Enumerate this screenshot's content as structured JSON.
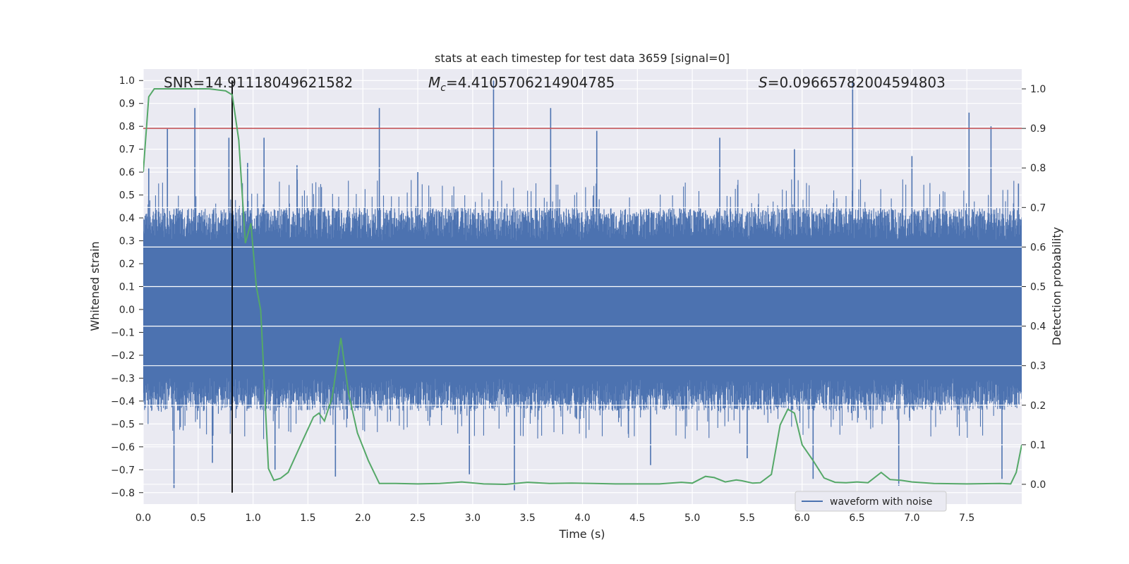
{
  "chart_data": {
    "type": "line",
    "title": "stats at each timestep for test data 3659 [signal=0]",
    "xlabel": "Time (s)",
    "ylabel_left": "Whitened strain",
    "ylabel_right": "Detection probability",
    "xlim": [
      0,
      8
    ],
    "ylim_left": [
      -0.85,
      1.05
    ],
    "ylim_right": [
      -0.05,
      1.05
    ],
    "x_ticks": [
      0.0,
      0.5,
      1.0,
      1.5,
      2.0,
      2.5,
      3.0,
      3.5,
      4.0,
      4.5,
      5.0,
      5.5,
      6.0,
      6.5,
      7.0,
      7.5
    ],
    "x_tick_labels": [
      "0.0",
      "0.5",
      "1.0",
      "1.5",
      "2.0",
      "2.5",
      "3.0",
      "3.5",
      "4.0",
      "4.5",
      "5.0",
      "5.5",
      "6.0",
      "6.5",
      "7.0",
      "7.5"
    ],
    "y_left_ticks": [
      -0.8,
      -0.7,
      -0.6,
      -0.5,
      -0.4,
      -0.3,
      -0.2,
      -0.1,
      0.0,
      0.1,
      0.2,
      0.3,
      0.4,
      0.5,
      0.6,
      0.7,
      0.8,
      0.9,
      1.0
    ],
    "y_left_tick_labels": [
      "−0.8",
      "−0.7",
      "−0.6",
      "−0.5",
      "−0.4",
      "−0.3",
      "−0.2",
      "−0.1",
      "0.0",
      "0.1",
      "0.2",
      "0.3",
      "0.4",
      "0.5",
      "0.6",
      "0.7",
      "0.8",
      "0.9",
      "1.0"
    ],
    "y_right_ticks": [
      0.0,
      0.1,
      0.2,
      0.3,
      0.4,
      0.5,
      0.6,
      0.7,
      0.8,
      0.9,
      1.0
    ],
    "y_right_tick_labels": [
      "0.0",
      "0.1",
      "0.2",
      "0.3",
      "0.4",
      "0.5",
      "0.6",
      "0.7",
      "0.8",
      "0.9",
      "1.0"
    ],
    "annotations": {
      "snr": "SNR=14.91118049621582",
      "mc_symbol": "M",
      "mc_sub": "c",
      "mc_value": "=4.4105706214904785",
      "s_symbol": "S",
      "s_value": "=0.09665782004594803"
    },
    "vertical_line_x": 0.81,
    "threshold_line_right": 0.9,
    "legend": {
      "label": "waveform with noise",
      "placement": "lower right"
    },
    "grid": true,
    "colors": {
      "waveform": "#4c72b0",
      "probability": "#55a868",
      "threshold": "#c44e52",
      "marker_line": "#000000",
      "axes_bg": "#eaeaf2"
    },
    "series": [
      {
        "name": "waveform with noise",
        "kind": "noise_band",
        "band_upper": 0.45,
        "band_lower": -0.45,
        "dense_center_upper": 0.3,
        "dense_center_lower": -0.3,
        "spikes": [
          {
            "x": 0.05,
            "y": 0.62
          },
          {
            "x": 0.22,
            "y": 0.79
          },
          {
            "x": 0.28,
            "y": -0.78
          },
          {
            "x": 0.47,
            "y": 0.88
          },
          {
            "x": 0.63,
            "y": -0.67
          },
          {
            "x": 0.78,
            "y": 0.75
          },
          {
            "x": 0.95,
            "y": 0.64
          },
          {
            "x": 1.1,
            "y": 0.75
          },
          {
            "x": 1.2,
            "y": -0.7
          },
          {
            "x": 1.4,
            "y": 0.63
          },
          {
            "x": 1.75,
            "y": -0.73
          },
          {
            "x": 2.15,
            "y": 0.88
          },
          {
            "x": 2.5,
            "y": 0.6
          },
          {
            "x": 2.97,
            "y": -0.72
          },
          {
            "x": 3.19,
            "y": 1.0
          },
          {
            "x": 3.38,
            "y": -0.79
          },
          {
            "x": 3.71,
            "y": 0.88
          },
          {
            "x": 4.13,
            "y": 0.78
          },
          {
            "x": 4.62,
            "y": -0.68
          },
          {
            "x": 5.25,
            "y": 0.75
          },
          {
            "x": 5.5,
            "y": -0.65
          },
          {
            "x": 5.93,
            "y": 0.7
          },
          {
            "x": 6.1,
            "y": -0.74
          },
          {
            "x": 6.46,
            "y": 1.0
          },
          {
            "x": 6.88,
            "y": -0.77
          },
          {
            "x": 7.0,
            "y": 0.67
          },
          {
            "x": 7.52,
            "y": 0.86
          },
          {
            "x": 7.72,
            "y": 0.8
          },
          {
            "x": 7.82,
            "y": -0.74
          },
          {
            "x": 7.97,
            "y": 0.55
          }
        ]
      },
      {
        "name": "",
        "axis": "right",
        "x": [
          0.0,
          0.05,
          0.1,
          0.2,
          0.4,
          0.6,
          0.75,
          0.81,
          0.87,
          0.93,
          0.98,
          1.03,
          1.07,
          1.14,
          1.19,
          1.25,
          1.32,
          1.45,
          1.55,
          1.6,
          1.65,
          1.72,
          1.8,
          1.87,
          1.95,
          2.05,
          2.15,
          2.3,
          2.5,
          2.7,
          2.9,
          3.1,
          3.3,
          3.5,
          3.7,
          3.9,
          4.1,
          4.3,
          4.5,
          4.7,
          4.9,
          5.0,
          5.12,
          5.2,
          5.3,
          5.4,
          5.45,
          5.55,
          5.62,
          5.72,
          5.8,
          5.87,
          5.93,
          6.0,
          6.1,
          6.2,
          6.3,
          6.4,
          6.5,
          6.6,
          6.72,
          6.8,
          6.9,
          7.0,
          7.2,
          7.5,
          7.8,
          7.9,
          7.95,
          8.0
        ],
        "y": [
          0.79,
          0.98,
          1.0,
          1.0,
          1.0,
          1.0,
          0.995,
          0.985,
          0.87,
          0.61,
          0.66,
          0.5,
          0.44,
          0.04,
          0.01,
          0.015,
          0.03,
          0.11,
          0.17,
          0.18,
          0.16,
          0.22,
          0.37,
          0.23,
          0.13,
          0.06,
          0.002,
          0.002,
          0.001,
          0.002,
          0.006,
          0.001,
          0.0,
          0.005,
          0.002,
          0.003,
          0.002,
          0.001,
          0.001,
          0.001,
          0.005,
          0.003,
          0.02,
          0.017,
          0.006,
          0.011,
          0.009,
          0.003,
          0.004,
          0.025,
          0.15,
          0.19,
          0.18,
          0.1,
          0.06,
          0.016,
          0.005,
          0.004,
          0.006,
          0.004,
          0.03,
          0.012,
          0.01,
          0.006,
          0.002,
          0.001,
          0.002,
          0.001,
          0.03,
          0.1
        ]
      }
    ]
  }
}
